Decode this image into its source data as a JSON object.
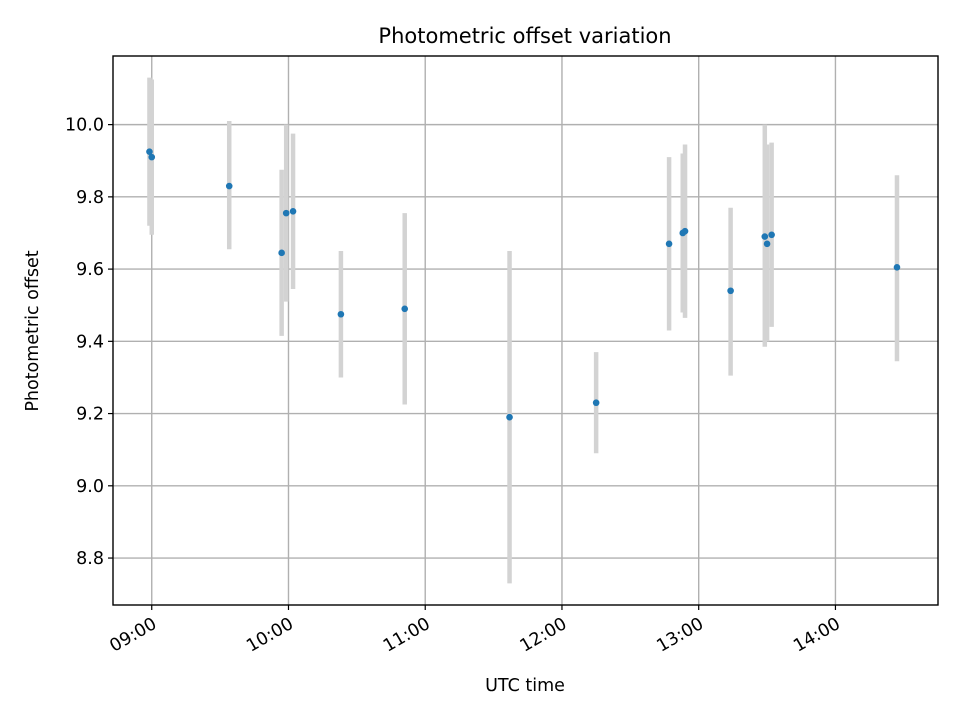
{
  "chart_data": {
    "type": "scatter",
    "title": "Photometric offset variation",
    "xlabel": "UTC time",
    "ylabel": "Photometric offset",
    "xlim": [
      "08:43",
      "14:45"
    ],
    "ylim": [
      8.67,
      10.19
    ],
    "x_ticks": [
      "09:00",
      "10:00",
      "11:00",
      "12:00",
      "13:00",
      "14:00"
    ],
    "y_ticks": [
      8.8,
      9.0,
      9.2,
      9.4,
      9.6,
      9.8,
      10.0
    ],
    "y_tick_labels": [
      "8.8",
      "9.0",
      "9.2",
      "9.4",
      "9.6",
      "9.8",
      "10.0"
    ],
    "grid": true,
    "colors": {
      "point": "#1f77b4",
      "errorbar": "#d3d3d3",
      "grid": "#b0b0b0"
    },
    "series": [
      {
        "x": [
          "08:59",
          "09:00",
          "09:34",
          "09:57",
          "09:59",
          "10:02",
          "10:23",
          "10:51",
          "11:37",
          "12:15",
          "12:47",
          "12:53",
          "12:54",
          "13:14",
          "13:29",
          "13:30",
          "13:32",
          "14:27"
        ],
        "y": [
          9.925,
          9.91,
          9.83,
          9.645,
          9.755,
          9.76,
          9.475,
          9.49,
          9.19,
          9.23,
          9.67,
          9.7,
          9.705,
          9.54,
          9.69,
          9.67,
          9.695,
          9.605
        ],
        "yerr_low": [
          9.72,
          9.695,
          9.655,
          9.415,
          9.51,
          9.545,
          9.3,
          9.225,
          8.73,
          9.09,
          9.43,
          9.48,
          9.465,
          9.305,
          9.385,
          9.4,
          9.44,
          9.345
        ],
        "yerr_high": [
          10.13,
          10.125,
          10.01,
          9.875,
          10.0,
          9.975,
          9.65,
          9.755,
          9.65,
          9.37,
          9.91,
          9.92,
          9.945,
          9.77,
          10.0,
          9.945,
          9.95,
          9.86
        ]
      }
    ]
  }
}
